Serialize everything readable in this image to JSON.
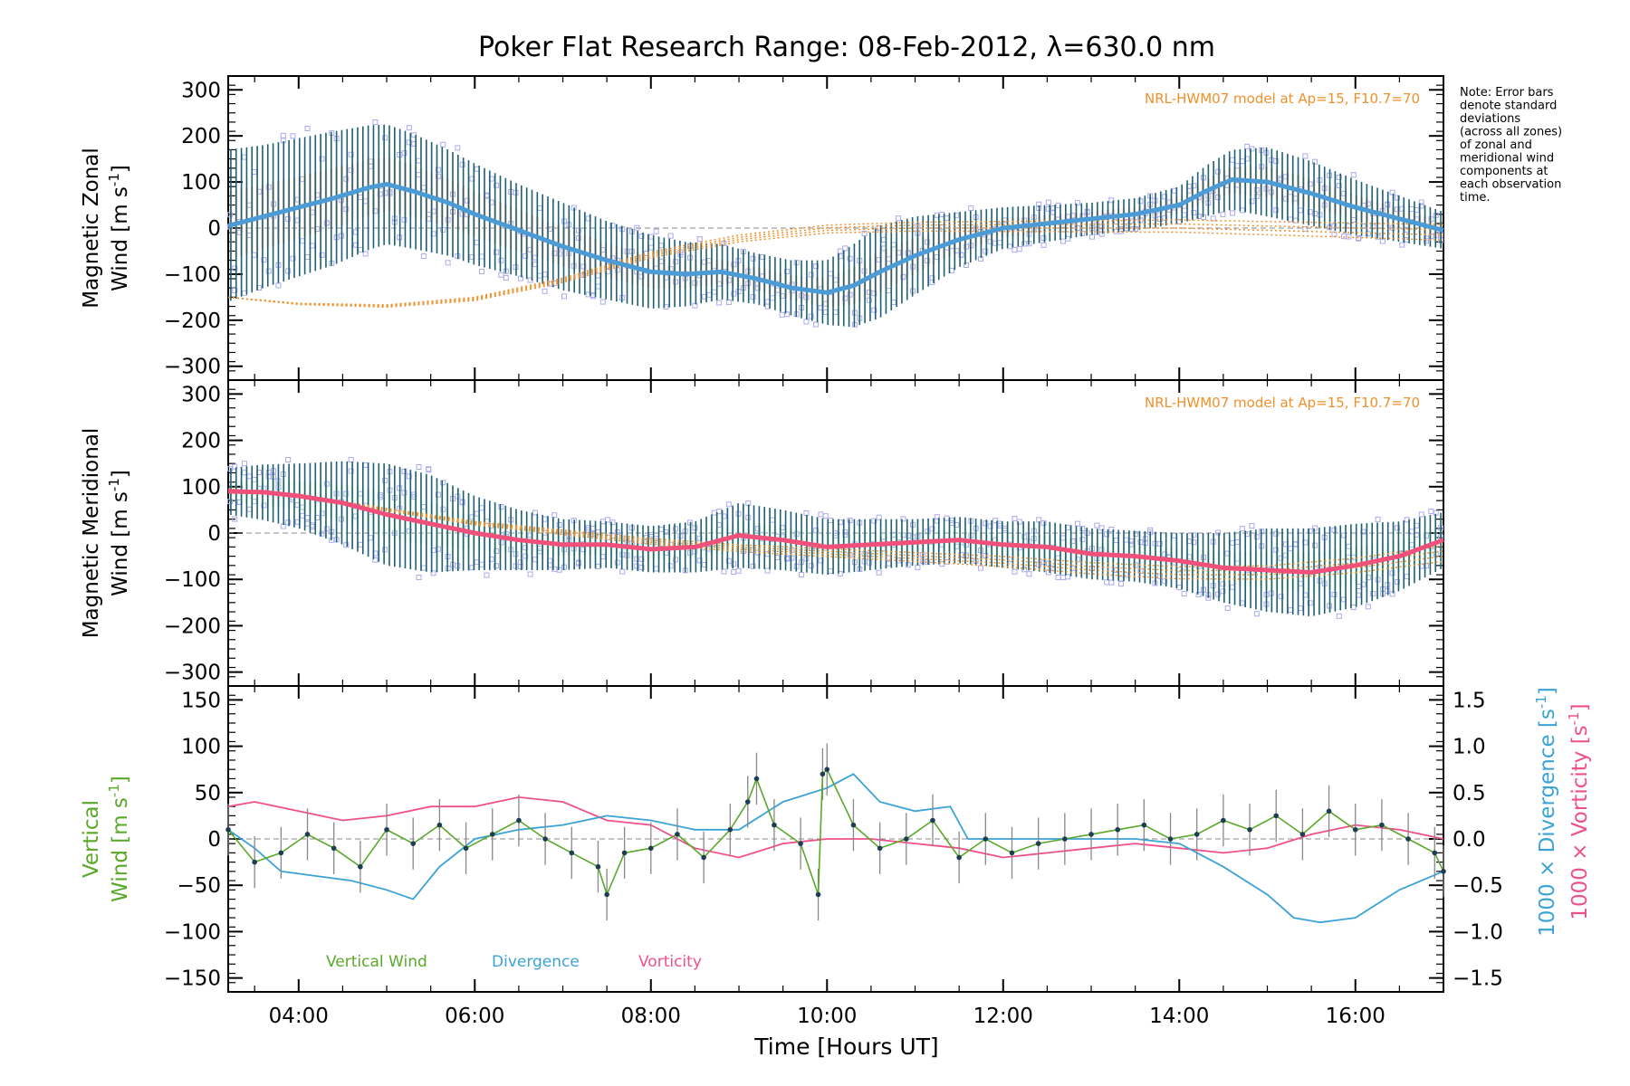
{
  "title": "Poker Flat Research Range: 08-Feb-2012, λ=630.0 nm",
  "note_lines": [
    "Note: Error bars",
    "denote standard",
    "deviations",
    "(across all zones)",
    "of zonal and",
    "meridional wind",
    "components at",
    "each observation",
    "time."
  ],
  "x_axis": {
    "label": "Time [Hours UT]",
    "ticks": [
      {
        "label": "04:00",
        "hour": 4
      },
      {
        "label": "06:00",
        "hour": 6
      },
      {
        "label": "08:00",
        "hour": 8
      },
      {
        "label": "10:00",
        "hour": 10
      },
      {
        "label": "12:00",
        "hour": 12
      },
      {
        "label": "14:00",
        "hour": 14
      },
      {
        "label": "16:00",
        "hour": 16
      }
    ]
  },
  "colors": {
    "zonal": "#4a9bd6",
    "meridional": "#f0507a",
    "vertical": "#5aa82a",
    "divergence": "#3ba3d6",
    "vorticity": "#f0508a",
    "error_bar": "#1d5f74",
    "model": "#f0902a",
    "zone_scatter": "#aaaaee"
  },
  "chart_data": [
    {
      "type": "line",
      "ylabel": "Magnetic Zonal Wind [m s⁻¹]",
      "ylabel_parts": [
        "Magnetic Zonal",
        "Wind [m s",
        "-1",
        "]"
      ],
      "model_label": "NRL-HWM07 model at Ap=15, F10.7=70",
      "ylim": [
        -330,
        330
      ],
      "yticks": [
        -300,
        -200,
        -100,
        0,
        100,
        200,
        300
      ],
      "series": [
        {
          "role": "mean",
          "x": [
            3.2,
            3.6,
            4.0,
            4.4,
            4.8,
            5.0,
            5.3,
            5.7,
            6.0,
            6.5,
            7.0,
            7.5,
            8.0,
            8.4,
            8.8,
            9.2,
            9.6,
            10.0,
            10.3,
            10.6,
            11.0,
            11.5,
            12.0,
            12.5,
            13.0,
            13.5,
            14.0,
            14.3,
            14.6,
            15.0,
            15.5,
            16.0,
            16.5,
            17.0
          ],
          "y": [
            5,
            25,
            45,
            65,
            88,
            95,
            80,
            55,
            30,
            -5,
            -40,
            -70,
            -95,
            -100,
            -95,
            -110,
            -130,
            -140,
            -125,
            -95,
            -60,
            -25,
            0,
            10,
            20,
            30,
            50,
            80,
            105,
            100,
            75,
            45,
            20,
            -5
          ],
          "err": [
            165,
            155,
            150,
            145,
            135,
            130,
            125,
            115,
            110,
            100,
            95,
            85,
            80,
            70,
            60,
            55,
            60,
            70,
            90,
            100,
            85,
            60,
            45,
            40,
            35,
            35,
            40,
            55,
            65,
            75,
            70,
            60,
            50,
            40
          ]
        },
        {
          "role": "model",
          "x": [
            3.2,
            4.0,
            5.0,
            6.0,
            7.0,
            8.0,
            9.0,
            10.0,
            11.0,
            12.0,
            13.0,
            14.0,
            15.0,
            16.0,
            17.0
          ],
          "y": [
            -150,
            -165,
            -170,
            -155,
            -115,
            -60,
            -25,
            -5,
            0,
            0,
            0,
            0,
            -5,
            -10,
            -15
          ]
        }
      ]
    },
    {
      "type": "line",
      "ylabel": "Magnetic Meridional Wind [m s⁻¹]",
      "ylabel_parts": [
        "Magnetic Meridional",
        "Wind [m s",
        "-1",
        "]"
      ],
      "model_label": "NRL-HWM07 model at Ap=15, F10.7=70",
      "ylim": [
        -330,
        330
      ],
      "yticks": [
        -300,
        -200,
        -100,
        0,
        100,
        200,
        300
      ],
      "series": [
        {
          "role": "mean",
          "x": [
            3.2,
            3.6,
            4.0,
            4.5,
            5.0,
            5.5,
            6.0,
            6.5,
            7.0,
            7.5,
            8.0,
            8.5,
            9.0,
            9.5,
            10.0,
            10.5,
            11.0,
            11.5,
            12.0,
            12.5,
            13.0,
            13.5,
            14.0,
            14.5,
            15.0,
            15.5,
            16.0,
            16.5,
            17.0
          ],
          "y": [
            90,
            88,
            80,
            65,
            40,
            20,
            0,
            -15,
            -25,
            -25,
            -35,
            -30,
            -5,
            -15,
            -30,
            -25,
            -20,
            -15,
            -25,
            -30,
            -45,
            -50,
            -60,
            -75,
            -80,
            -85,
            -70,
            -50,
            -15
          ],
          "err": [
            50,
            60,
            70,
            90,
            110,
            105,
            80,
            65,
            55,
            50,
            50,
            55,
            70,
            65,
            60,
            55,
            50,
            50,
            50,
            55,
            55,
            55,
            60,
            75,
            90,
            95,
            90,
            75,
            60
          ]
        },
        {
          "role": "model",
          "x": [
            3.2,
            4.0,
            5.0,
            6.0,
            7.0,
            8.0,
            9.0,
            10.0,
            11.0,
            12.0,
            13.0,
            14.0,
            15.0,
            16.0,
            17.0
          ],
          "y": [
            95,
            80,
            50,
            20,
            0,
            -20,
            -35,
            -45,
            -55,
            -65,
            -80,
            -90,
            -90,
            -75,
            -50
          ]
        }
      ]
    },
    {
      "type": "line",
      "ylabel": "Vertical Wind [m s⁻¹]",
      "ylabel_parts": [
        "Vertical",
        "Wind [m s",
        "-1",
        "]"
      ],
      "ylim": [
        -165,
        165
      ],
      "yticks": [
        -150,
        -100,
        -50,
        0,
        50,
        100,
        150
      ],
      "right_axis": {
        "ylim": [
          -1.65,
          1.65
        ],
        "ticks": [
          "-1.5",
          "-1.0",
          "-0.5",
          "0.0",
          "0.5",
          "1.0",
          "1.5"
        ],
        "label_divergence": "1000 × Divergence [s⁻¹]",
        "label_divergence_parts": [
          "1000 × Divergence [s",
          "-1",
          "]"
        ],
        "label_vorticity": "1000 × Vorticity [s⁻¹]",
        "label_vorticity_parts": [
          "1000 × Vorticity [s",
          "-1",
          "]"
        ]
      },
      "legend": [
        {
          "name": "Vertical Wind",
          "color": "#5aa82a"
        },
        {
          "name": "Divergence",
          "color": "#3ba3d6"
        },
        {
          "name": "Vorticity",
          "color": "#f0508a"
        }
      ],
      "series": [
        {
          "name": "Vertical Wind",
          "axis": "left",
          "x": [
            3.2,
            3.5,
            3.8,
            4.1,
            4.4,
            4.7,
            5.0,
            5.3,
            5.6,
            5.9,
            6.2,
            6.5,
            6.8,
            7.1,
            7.4,
            7.5,
            7.7,
            8.0,
            8.3,
            8.6,
            8.9,
            9.1,
            9.2,
            9.4,
            9.7,
            9.9,
            9.95,
            10.0,
            10.3,
            10.6,
            10.9,
            11.2,
            11.5,
            11.8,
            12.1,
            12.4,
            12.7,
            13.0,
            13.3,
            13.6,
            13.9,
            14.2,
            14.5,
            14.8,
            15.1,
            15.4,
            15.7,
            16.0,
            16.3,
            16.6,
            16.9,
            17.0
          ],
          "y": [
            10,
            -25,
            -15,
            5,
            -10,
            -30,
            10,
            -5,
            15,
            -10,
            5,
            20,
            0,
            -15,
            -30,
            -60,
            -15,
            -10,
            5,
            -20,
            10,
            40,
            65,
            15,
            -5,
            -60,
            70,
            75,
            15,
            -10,
            0,
            20,
            -20,
            0,
            -15,
            -5,
            0,
            5,
            10,
            15,
            0,
            5,
            20,
            10,
            25,
            5,
            30,
            10,
            15,
            0,
            -15,
            -35
          ]
        },
        {
          "name": "Divergence",
          "axis": "right",
          "x": [
            3.2,
            3.5,
            3.8,
            4.2,
            4.6,
            5.0,
            5.3,
            5.6,
            6.0,
            6.5,
            7.0,
            7.5,
            8.0,
            8.5,
            9.0,
            9.5,
            10.0,
            10.3,
            10.6,
            11.0,
            11.4,
            11.6,
            12.0,
            12.5,
            13.0,
            13.5,
            14.0,
            14.5,
            15.0,
            15.3,
            15.6,
            16.0,
            16.5,
            17.0
          ],
          "y": [
            0.1,
            -0.1,
            -0.35,
            -0.4,
            -0.45,
            -0.55,
            -0.65,
            -0.3,
            0.0,
            0.1,
            0.15,
            0.25,
            0.2,
            0.1,
            0.1,
            0.4,
            0.55,
            0.7,
            0.4,
            0.3,
            0.35,
            0.0,
            0.0,
            0.0,
            0.0,
            0.0,
            -0.05,
            -0.3,
            -0.6,
            -0.85,
            -0.9,
            -0.85,
            -0.55,
            -0.35
          ]
        },
        {
          "name": "Vorticity",
          "axis": "right",
          "x": [
            3.2,
            3.5,
            4.0,
            4.5,
            5.0,
            5.5,
            6.0,
            6.5,
            7.0,
            7.5,
            8.0,
            8.5,
            9.0,
            9.5,
            10.0,
            10.5,
            11.0,
            11.5,
            12.0,
            12.5,
            13.0,
            13.5,
            14.0,
            14.5,
            15.0,
            15.5,
            16.0,
            16.5,
            17.0
          ],
          "y": [
            0.35,
            0.4,
            0.3,
            0.2,
            0.25,
            0.35,
            0.35,
            0.45,
            0.4,
            0.2,
            0.15,
            -0.1,
            -0.2,
            -0.05,
            0.0,
            0.0,
            -0.05,
            -0.1,
            -0.2,
            -0.15,
            -0.1,
            -0.05,
            -0.1,
            -0.15,
            -0.1,
            0.05,
            0.15,
            0.1,
            0.0
          ]
        }
      ]
    }
  ]
}
